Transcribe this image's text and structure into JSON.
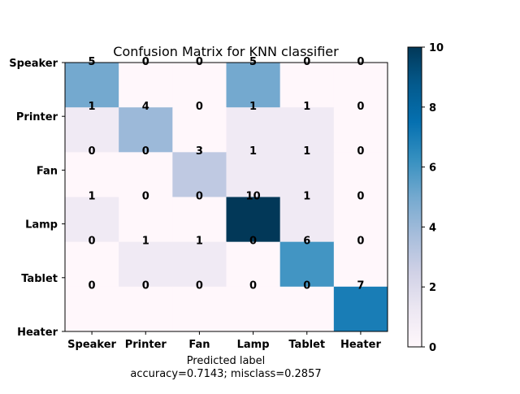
{
  "chart_data": {
    "type": "heatmap",
    "title": "Confusion Matrix for KNN classifier",
    "xlabel": "Predicted label",
    "xlabel_sub": "accuracy=0.7143; misclass=0.2857",
    "ylabel": "",
    "x_categories": [
      "Speaker",
      "Printer",
      "Fan",
      "Lamp",
      "Tablet",
      "Heater"
    ],
    "y_categories": [
      "Speaker",
      "Printer",
      "Fan",
      "Lamp",
      "Tablet",
      "Heater"
    ],
    "matrix": [
      [
        5,
        0,
        0,
        5,
        0,
        0
      ],
      [
        1,
        4,
        0,
        1,
        1,
        0
      ],
      [
        0,
        0,
        3,
        1,
        1,
        0
      ],
      [
        1,
        0,
        0,
        10,
        1,
        0
      ],
      [
        0,
        1,
        1,
        0,
        6,
        0
      ],
      [
        0,
        0,
        0,
        0,
        0,
        7
      ]
    ],
    "colorbar": {
      "range": [
        0,
        10
      ],
      "ticks": [
        0,
        2,
        4,
        6,
        8,
        10
      ],
      "colormap": "PuBu"
    }
  }
}
